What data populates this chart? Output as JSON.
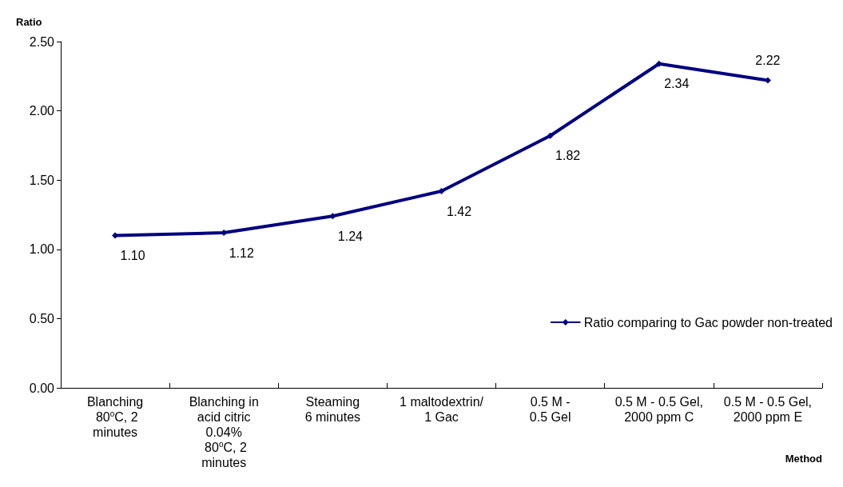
{
  "chart_data": {
    "type": "line",
    "xlabel": "Method",
    "ylabel": "Ratio",
    "categories": [
      "Blanching\n 80$^{o}$C, 2\nminutes",
      "Blanching in\nacid citric\n0.04%\n 80$^{o}$C, 2\nminutes",
      "Steaming\n6 minutes",
      "1 maltodextrin/\n1 Gac",
      "0.5 M -\n0.5 Gel",
      "0.5 M - 0.5 Gel,\n2000 ppm C",
      "0.5 M - 0.5 Gel,\n2000 ppm E"
    ],
    "series": [
      {
        "name": "Ratio comparing to Gac powder non-treated",
        "color": "#000080",
        "values": [
          1.1,
          1.12,
          1.24,
          1.42,
          1.82,
          2.34,
          2.22
        ],
        "value_labels": [
          "1.10",
          "1.12",
          "1.24",
          "1.42",
          "1.82",
          "2.34",
          "2.22"
        ]
      }
    ],
    "ylim": [
      0,
      2.5
    ],
    "yticks": [
      {
        "value": 0,
        "label": "0.00"
      },
      {
        "value": 0.5,
        "label": "0.50"
      },
      {
        "value": 1,
        "label": "1.00"
      },
      {
        "value": 1.5,
        "label": "1.50"
      },
      {
        "value": 2,
        "label": "2.00"
      },
      {
        "value": 2.5,
        "label": "2.50"
      }
    ],
    "grid": false,
    "legend": "right",
    "marker": "diamond",
    "line_style": "solid"
  }
}
